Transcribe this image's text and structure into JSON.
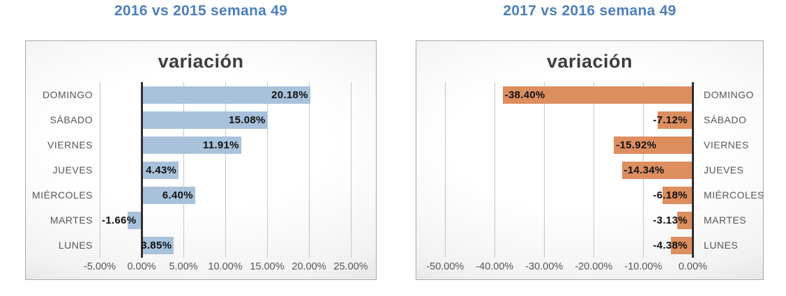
{
  "colors": {
    "header_blue": "#4d7fbc",
    "panel_title": "#3d3d3d",
    "bar_blue": "#a9c2dc",
    "bar_orange": "#dd8e5f",
    "value_label": "#111111",
    "category_text": "#555555",
    "gridline": "#c6c6c6",
    "axis_line": "#2e2e2e",
    "panel_border": "#a9a9a9"
  },
  "chart_data": [
    {
      "type": "bar",
      "orientation": "horizontal",
      "title": "2016 vs 2015 semana 49",
      "panel_title": "variación",
      "categories": [
        "DOMINGO",
        "SÁBADO",
        "VIERNES",
        "JUEVES",
        "MIÉRCOLES",
        "MARTES",
        "LUNES"
      ],
      "values": [
        20.18,
        15.08,
        11.91,
        4.43,
        6.4,
        -1.66,
        3.85
      ],
      "data_labels": [
        "20.18%",
        "15.08%",
        "11.91%",
        "4.43%",
        "6.40%",
        "-1.66%",
        "3.85%"
      ],
      "bar_color": "#a9c2dc",
      "category_side": "left",
      "grid": true,
      "xlim": [
        -5.5,
        27.5
      ],
      "xticks": [
        -5,
        0,
        5,
        10,
        15,
        20,
        25
      ],
      "xtick_labels": [
        "-5.00%",
        "0.00%",
        "5.00%",
        "10.00%",
        "15.00%",
        "20.00%",
        "25.00%"
      ]
    },
    {
      "type": "bar",
      "orientation": "horizontal",
      "title": "2017 vs 2016 semana 49",
      "panel_title": "variación",
      "categories": [
        "DOMINGO",
        "SÁBADO",
        "VIERNES",
        "JUEVES",
        "MIÉRCOLES",
        "MARTES",
        "LUNES"
      ],
      "values": [
        -38.4,
        -7.12,
        -15.92,
        -14.34,
        -6.18,
        -3.13,
        -4.38
      ],
      "data_labels": [
        "-38.40%",
        "-7.12%",
        "-15.92%",
        "-14.34%",
        "-6.18%",
        "-3.13%",
        "-4.38%"
      ],
      "bar_color": "#dd8e5f",
      "category_side": "right",
      "grid": true,
      "xlim": [
        -53,
        1
      ],
      "xticks": [
        -50,
        -40,
        -30,
        -20,
        -10,
        0
      ],
      "xtick_labels": [
        "-50.00%",
        "-40.00%",
        "-30.00%",
        "-20.00%",
        "-10.00%",
        "0.00%"
      ]
    }
  ]
}
